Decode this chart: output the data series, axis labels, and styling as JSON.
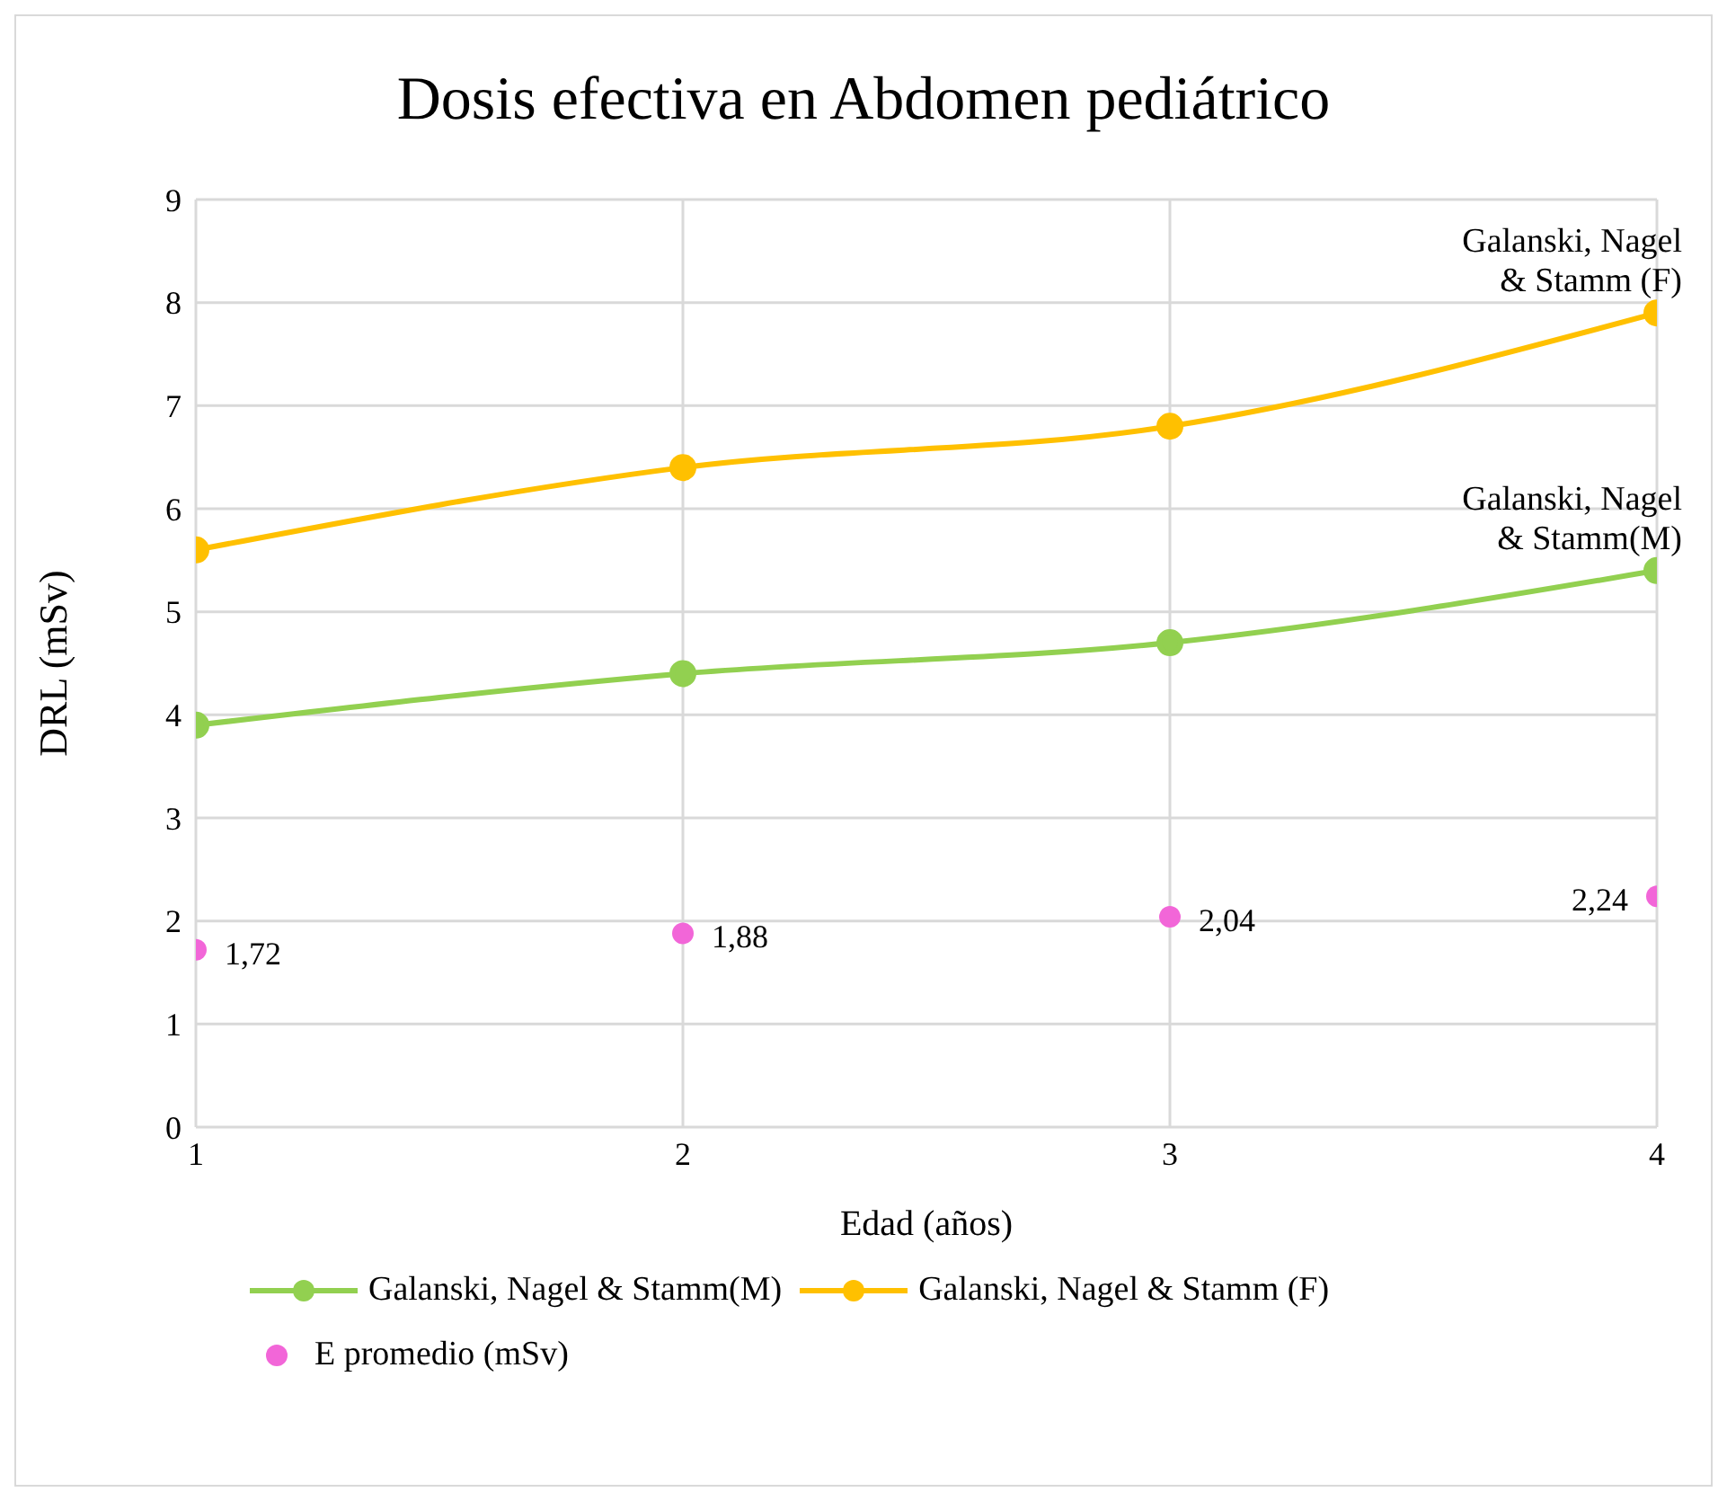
{
  "chart_data": {
    "type": "line",
    "title": "Dosis efectiva en Abdomen pediátrico",
    "xlabel": "Edad (años)",
    "ylabel": "DRL (mSv)",
    "x": [
      1,
      2,
      3,
      4
    ],
    "xlim": [
      1,
      4
    ],
    "xticks": [
      1,
      2,
      3,
      4
    ],
    "ylim": [
      0,
      9
    ],
    "yticks": [
      0,
      1,
      2,
      3,
      4,
      5,
      6,
      7,
      8,
      9
    ],
    "grid": true,
    "legend": "bottom",
    "marker": "circle",
    "series": [
      {
        "name": "Galanski, Nagel & Stamm(M)",
        "color": "#92d050",
        "values": [
          3.9,
          4.4,
          4.7,
          5.4
        ]
      },
      {
        "name": "Galanski, Nagel & Stamm (F)",
        "color": "#ffc000",
        "values": [
          5.6,
          6.4,
          6.8,
          7.9
        ]
      },
      {
        "name": "E promedio (mSv)",
        "type": "scatter",
        "color": "#f266d8",
        "values": [
          1.72,
          1.88,
          2.04,
          2.24
        ],
        "value_labels": [
          "1,72",
          "1,88",
          "2,04",
          "2,24"
        ]
      }
    ],
    "annotations": [
      {
        "text": "Galanski, Nagel & Stamm (F)",
        "x": 4,
        "y": 7.9
      },
      {
        "text": "Galanski, Nagel & Stamm(M)",
        "x": 4,
        "y": 5.4
      }
    ]
  }
}
